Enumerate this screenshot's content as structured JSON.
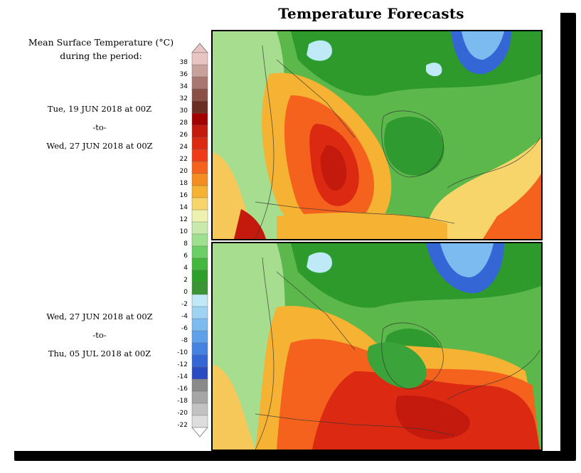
{
  "title": "Temperature Forecasts",
  "legend_title_line1": "Mean Surface Temperature (°C)",
  "legend_title_line2": "during the period:",
  "periods": [
    {
      "start": "Tue, 19 JUN 2018 at 00Z",
      "connector": "-to-",
      "end": "Wed, 27 JUN 2018 at 00Z"
    },
    {
      "start": "Wed, 27 JUN 2018 at 00Z",
      "connector": "-to-",
      "end": "Thu, 05 JUL 2018 at 00Z"
    }
  ],
  "colorbar": {
    "labels": [
      "38",
      "36",
      "34",
      "32",
      "30",
      "28",
      "26",
      "24",
      "22",
      "20",
      "18",
      "16",
      "14",
      "12",
      "10",
      "8",
      "6",
      "4",
      "2",
      "0",
      "-2",
      "-4",
      "-6",
      "-8",
      "-10",
      "-12",
      "-14",
      "-16",
      "-18",
      "-20",
      "-22"
    ],
    "colors": [
      "#e8c5c2",
      "#c9a19b",
      "#a9776f",
      "#8a5046",
      "#6b2e22",
      "#a30000",
      "#c41a0d",
      "#dc2a12",
      "#f03c18",
      "#f5621e",
      "#f58c22",
      "#f6b232",
      "#f7d56a",
      "#eef2b0",
      "#c8ebac",
      "#9ee08e",
      "#6bcf66",
      "#44b83e",
      "#2ea02a",
      "#3a9634",
      "#bfe9f6",
      "#9ed3f3",
      "#7cbbef",
      "#5ea0ea",
      "#4583e3",
      "#3566d6",
      "#2a4cc2",
      "#8a8a8a",
      "#a6a6a6",
      "#c2c2c2",
      "#dddddd"
    ]
  },
  "maps": [
    {
      "name": "forecast-map-week1"
    },
    {
      "name": "forecast-map-week2"
    }
  ]
}
